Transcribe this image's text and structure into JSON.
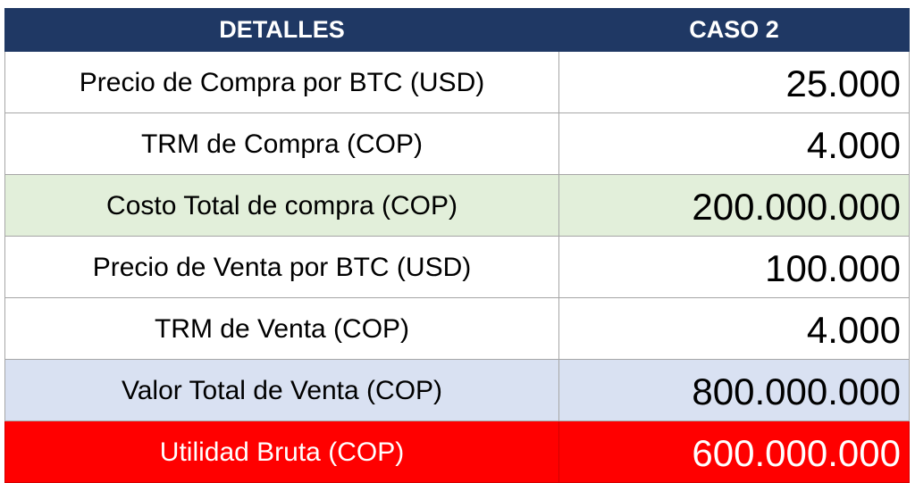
{
  "header": {
    "col1": "DETALLES",
    "col2": "CASO 2"
  },
  "rows": [
    {
      "label": "Precio de Compra por BTC (USD)",
      "value": "25.000",
      "fill": "#ffffff"
    },
    {
      "label": "TRM de Compra (COP)",
      "value": "4.000",
      "fill": "#ffffff"
    },
    {
      "label": "Costo Total de compra (COP)",
      "value": "200.000.000",
      "fill": "#e2efda"
    },
    {
      "label": "Precio de Venta por BTC (USD)",
      "value": "100.000",
      "fill": "#ffffff"
    },
    {
      "label": "TRM de Venta (COP)",
      "value": "4.000",
      "fill": "#ffffff"
    },
    {
      "label": "Valor Total de Venta (COP)",
      "value": "800.000.000",
      "fill": "#d9e1f2"
    },
    {
      "label": "Utilidad Bruta (COP)",
      "value": "600.000.000",
      "fill": "#ff0000"
    }
  ],
  "colors": {
    "header_bg": "#1f3864",
    "header_text": "#ffffff",
    "highlight_red": "#ff0000"
  }
}
